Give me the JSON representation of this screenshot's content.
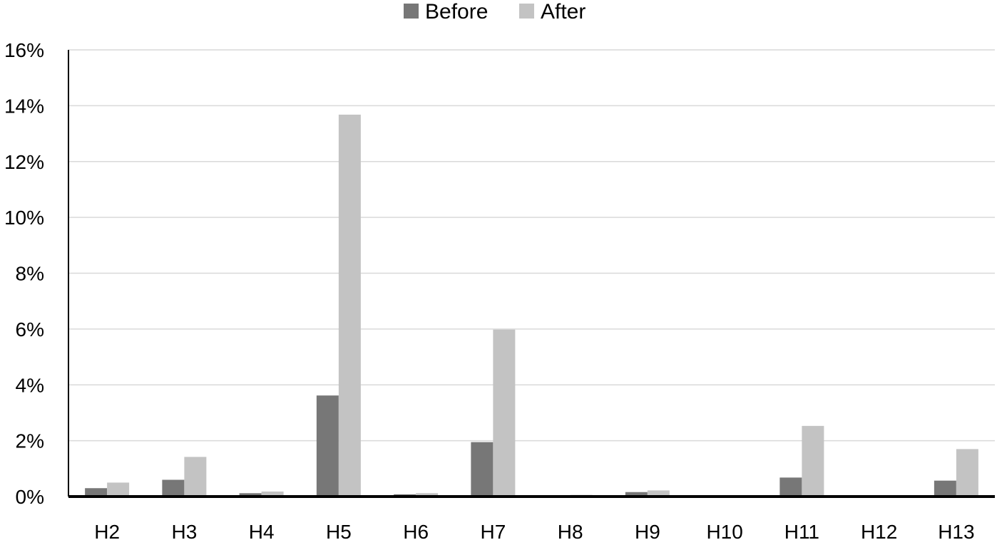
{
  "chart_data": {
    "type": "bar",
    "categories": [
      "H2",
      "H3",
      "H4",
      "H5",
      "H6",
      "H7",
      "H8",
      "H9",
      "H10",
      "H11",
      "H12",
      "H13"
    ],
    "series": [
      {
        "name": "Before",
        "color": "#777777",
        "values": [
          0.3,
          0.6,
          0.12,
          3.62,
          0.08,
          1.95,
          0.04,
          0.16,
          0.02,
          0.68,
          0.02,
          0.57
        ]
      },
      {
        "name": "After",
        "color": "#c3c3c3",
        "values": [
          0.5,
          1.42,
          0.18,
          13.68,
          0.12,
          5.98,
          0.06,
          0.22,
          0.03,
          2.53,
          0.04,
          1.7
        ]
      }
    ],
    "y_ticks": [
      "0%",
      "2%",
      "4%",
      "6%",
      "8%",
      "10%",
      "12%",
      "14%",
      "16%"
    ],
    "ylim": [
      0,
      16
    ],
    "grid": true,
    "legend_position": "top-center",
    "title": "",
    "xlabel": "",
    "ylabel": ""
  }
}
